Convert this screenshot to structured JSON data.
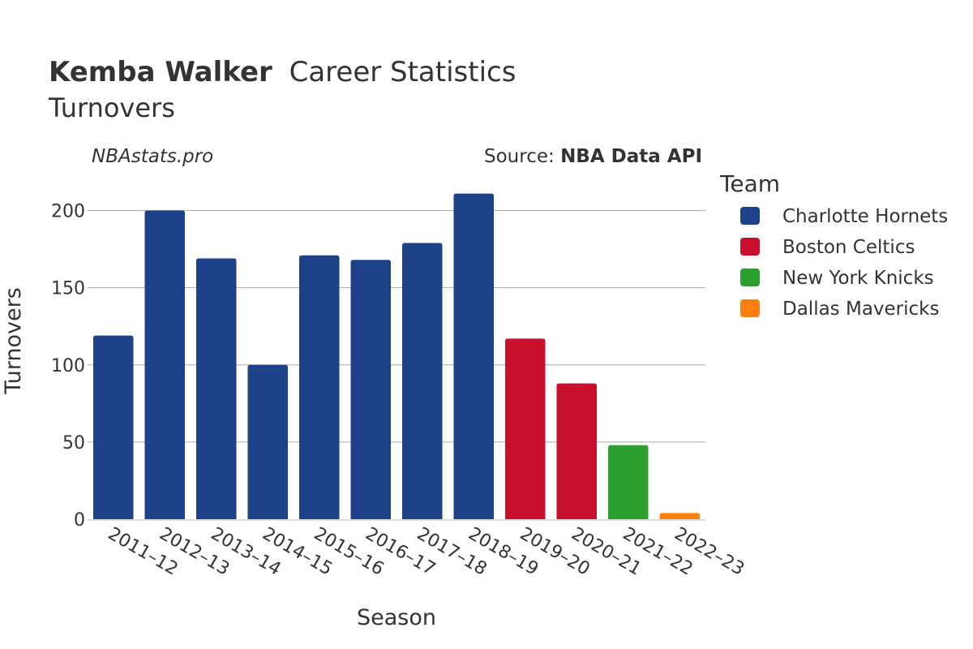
{
  "chart_data": {
    "type": "bar",
    "title_player": "Kemba Walker",
    "title_rest": "Career Statistics",
    "subtitle": "Turnovers",
    "credit": "NBAstats.pro",
    "source_prefix": "Source: ",
    "source_name": "NBA Data API",
    "xlabel": "Season",
    "ylabel": "Turnovers",
    "ylim": [
      0,
      220
    ],
    "yticks": [
      0,
      50,
      100,
      150,
      200
    ],
    "legend_title": "Team",
    "teams": [
      {
        "name": "Charlotte Hornets",
        "color": "#1d428a"
      },
      {
        "name": "Boston Celtics",
        "color": "#c8102e"
      },
      {
        "name": "New York Knicks",
        "color": "#2ca02c"
      },
      {
        "name": "Dallas Mavericks",
        "color": "#ff7f0e"
      }
    ],
    "categories": [
      "2011–12",
      "2012–13",
      "2013–14",
      "2014–15",
      "2015–16",
      "2016–17",
      "2017–18",
      "2018–19",
      "2019–20",
      "2020–21",
      "2021–22",
      "2022–23"
    ],
    "values": [
      119,
      200,
      169,
      100,
      171,
      168,
      179,
      211,
      117,
      88,
      48,
      4
    ],
    "team_index": [
      0,
      0,
      0,
      0,
      0,
      0,
      0,
      0,
      1,
      1,
      2,
      3
    ]
  }
}
